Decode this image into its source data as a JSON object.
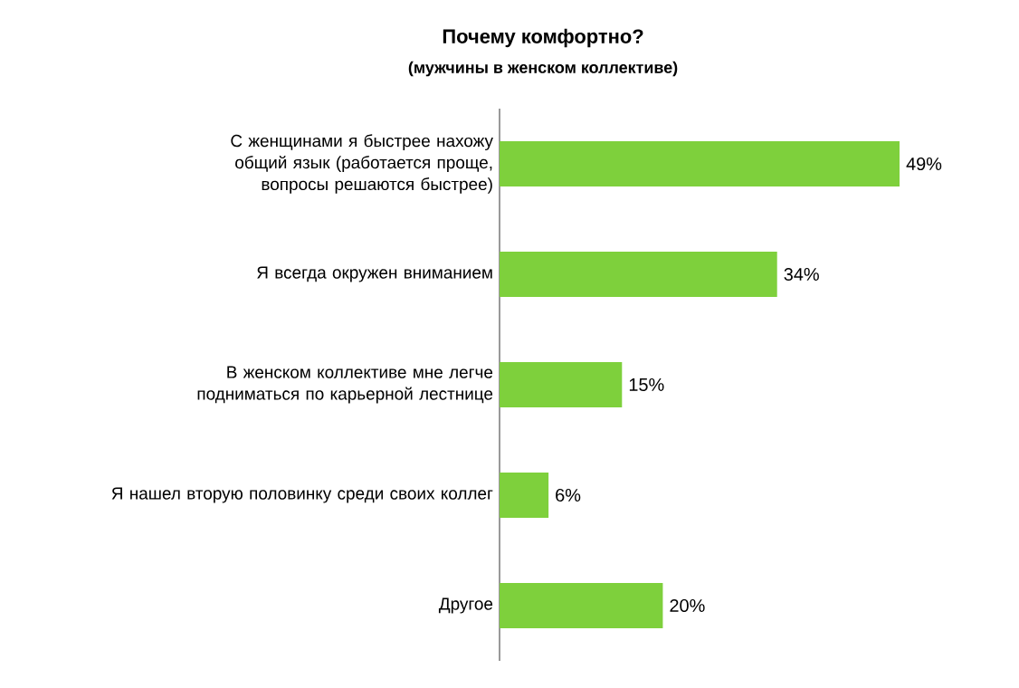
{
  "chart_data": {
    "type": "bar",
    "orientation": "horizontal",
    "title": "Почему комфортно?",
    "subtitle": "(мужчины в женском коллективе)",
    "categories": [
      "С женщинами я быстрее  нахожу общий язык (работается  проще, вопросы решаются быстрее)",
      "Я всегда окружен вниманием",
      "В женском коллективе  мне легче подниматься  по карьерной лестнице",
      "Я нашел  вторую половинку  среди своих коллег",
      "Другое"
    ],
    "values": [
      49,
      34,
      15,
      6,
      20
    ],
    "value_labels": [
      "49%",
      "34%",
      "15%",
      "6%",
      "20%"
    ],
    "color": "#7ed03c"
  }
}
